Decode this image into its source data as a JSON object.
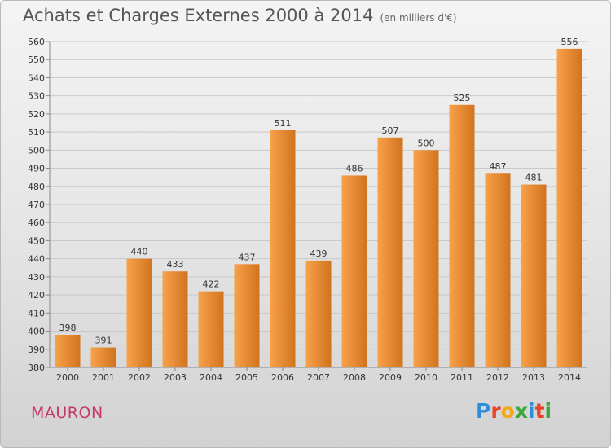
{
  "header": {
    "title": "Achats et Charges Externes 2000 à 2014",
    "unit": "(en milliers d'€)"
  },
  "commune": "MAURON",
  "logo": {
    "letters": [
      {
        "ch": "P",
        "color": "#2f8ed8"
      },
      {
        "ch": "r",
        "color": "#e8442c"
      },
      {
        "ch": "o",
        "color": "#f3a81c"
      },
      {
        "ch": "x",
        "color": "#3aa63c"
      },
      {
        "ch": "i",
        "color": "#2f8ed8"
      },
      {
        "ch": "t",
        "color": "#e8442c"
      },
      {
        "ch": "i",
        "color": "#3aa63c"
      }
    ]
  },
  "colors": {
    "bar_light": "#f7a24a",
    "bar_dark": "#d2731e",
    "grid": "#c9c9c9",
    "axis_text": "#333333"
  },
  "chart_data": {
    "type": "bar",
    "title": "Achats et Charges Externes 2000 à 2014",
    "subtitle": "(en milliers d'€)",
    "categories": [
      "2000",
      "2001",
      "2002",
      "2003",
      "2004",
      "2005",
      "2006",
      "2007",
      "2008",
      "2009",
      "2010",
      "2011",
      "2012",
      "2013",
      "2014"
    ],
    "values": [
      398,
      391,
      440,
      433,
      422,
      437,
      511,
      439,
      486,
      507,
      500,
      525,
      487,
      481,
      556
    ],
    "ylim": [
      380,
      560
    ],
    "yticks": [
      380,
      390,
      400,
      410,
      420,
      430,
      440,
      450,
      460,
      470,
      480,
      490,
      500,
      510,
      520,
      530,
      540,
      550,
      560
    ],
    "grid": true,
    "legend": "none"
  }
}
